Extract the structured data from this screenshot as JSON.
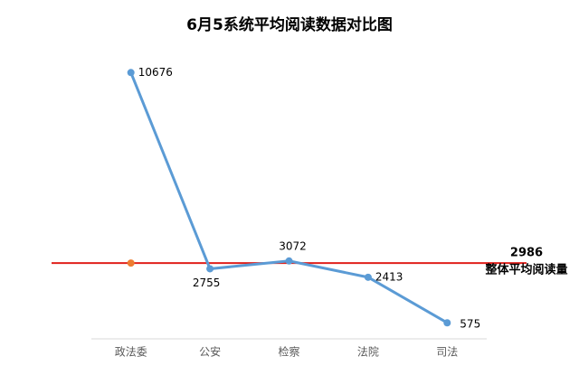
{
  "chart_data": {
    "type": "line",
    "title": "6月5系统平均阅读数据对比图",
    "categories": [
      "政法委",
      "公安",
      "检察",
      "法院",
      "司法"
    ],
    "values": [
      10676,
      2755,
      3072,
      2413,
      575
    ],
    "color": "#5b9bd5",
    "ylim": [
      0,
      12000
    ],
    "reference": {
      "value": 2986,
      "label": "整体平均阅读量",
      "color": "#e0201b",
      "marker_color": "#ed7d31"
    }
  }
}
